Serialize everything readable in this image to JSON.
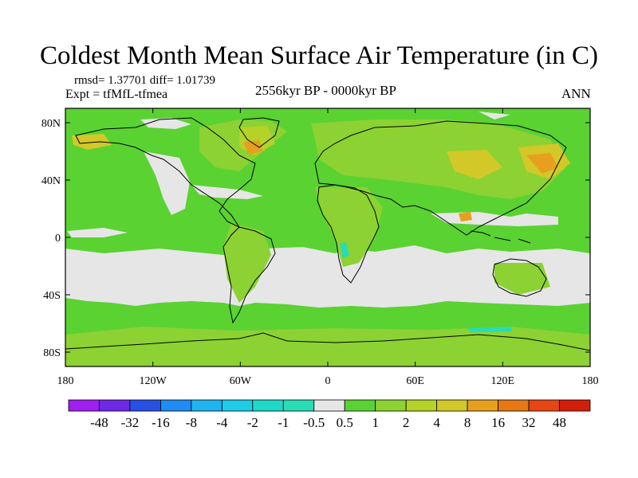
{
  "title": "Coldest Month Mean Surface Air Temperature (in C)",
  "stats": "rmsd= 1.37701 diff= 1.01739",
  "experiment": "Expt = tfMfL-tfmea",
  "period": "2556kyr BP - 0000kyr BP",
  "season": "ANN",
  "lat_labels": [
    "80N",
    "40N",
    "0",
    "40S",
    "80S"
  ],
  "lat_values": [
    80,
    40,
    0,
    -40,
    -80
  ],
  "lon_labels": [
    "180",
    "120W",
    "60W",
    "0",
    "60E",
    "120E",
    "180"
  ],
  "lon_values": [
    -180,
    -120,
    -60,
    0,
    60,
    120,
    180
  ],
  "colorbar": {
    "labels": [
      "-48",
      "-32",
      "-16",
      "-8",
      "-4",
      "-2",
      "-1",
      "-0.5",
      "0.5",
      "1",
      "2",
      "4",
      "8",
      "16",
      "32",
      "48"
    ],
    "colors": [
      "#a01ef0",
      "#6e28e6",
      "#2850e6",
      "#1e8cf0",
      "#1eb4f0",
      "#1ecce6",
      "#1ed8c8",
      "#28dcb4",
      "#e6e6e6",
      "#5ad232",
      "#8cd232",
      "#b4d228",
      "#d2c828",
      "#e6a01e",
      "#e67814",
      "#e64614",
      "#d21e0a"
    ]
  },
  "map_colors": {
    "ocean_green": "#5ad232",
    "light_green": "#8cd232",
    "yellow_green": "#b4d228",
    "yellow": "#d2c828",
    "orange": "#e6a01e",
    "neutral_gray": "#e6e6e6",
    "cyan": "#28dcb4",
    "coast": "#000000"
  }
}
